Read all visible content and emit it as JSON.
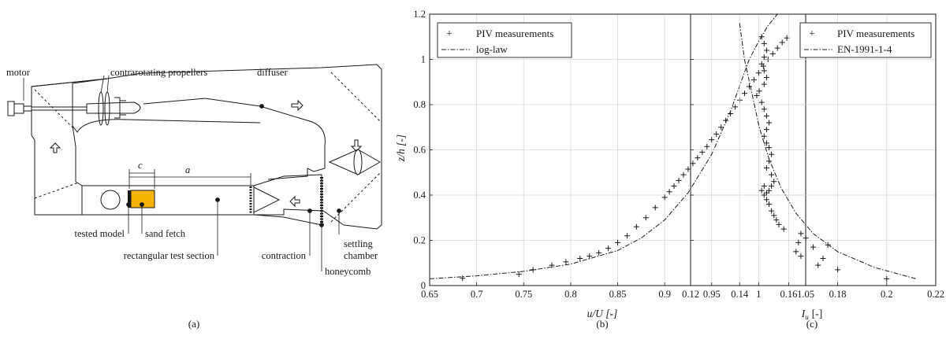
{
  "panel_a": {
    "labels": {
      "motor": "motor",
      "propellers": "contrarotating propellers",
      "diffuser": "diffuser",
      "c": "c",
      "a": "a",
      "tested_model": "tested model",
      "sand_fetch": "sand fetch",
      "test_section": "rectangular test section",
      "contraction": "contraction",
      "settling": "settling",
      "chamber": "chamber",
      "honeycomb": "honeycomb"
    },
    "caption": "(a)",
    "colors": {
      "sand_fetch": "#f4b400",
      "outline": "#1a1a1a"
    }
  },
  "chart_data": [
    {
      "type": "scatter",
      "panel": "b",
      "caption": "(b)",
      "xlabel": "u/U [-]",
      "ylabel": "z/h [-]",
      "xlim": [
        0.65,
        1.05
      ],
      "ylim": [
        0,
        1.2
      ],
      "xticks": [
        "0.65",
        "0.7",
        "0.75",
        "0.8",
        "0.85",
        "0.9",
        "0.95",
        "1",
        "1.05"
      ],
      "yticks": [
        "0",
        "0.2",
        "0.4",
        "0.6",
        "0.8",
        "1",
        "1.2"
      ],
      "grid": true,
      "legend_position": "top-left",
      "series": [
        {
          "name": "PIV measurements",
          "marker": "+",
          "x": [
            0.685,
            0.745,
            0.76,
            0.78,
            0.795,
            0.81,
            0.82,
            0.83,
            0.84,
            0.85,
            0.86,
            0.87,
            0.88,
            0.89,
            0.9,
            0.905,
            0.91,
            0.915,
            0.92,
            0.925,
            0.93,
            0.935,
            0.94,
            0.945,
            0.95,
            0.955,
            0.96,
            0.965,
            0.97,
            0.975,
            0.98,
            0.985,
            0.99,
            0.995,
            1.0,
            1.005,
            1.01,
            1.015,
            1.02,
            1.025,
            1.03
          ],
          "y": [
            0.032,
            0.05,
            0.07,
            0.09,
            0.105,
            0.12,
            0.13,
            0.145,
            0.165,
            0.19,
            0.22,
            0.26,
            0.3,
            0.345,
            0.39,
            0.415,
            0.44,
            0.465,
            0.49,
            0.515,
            0.54,
            0.565,
            0.59,
            0.615,
            0.645,
            0.67,
            0.7,
            0.73,
            0.76,
            0.79,
            0.82,
            0.85,
            0.88,
            0.91,
            0.94,
            0.97,
            1.0,
            1.025,
            1.05,
            1.075,
            1.095
          ]
        },
        {
          "name": "log-law",
          "style": "dash-dot",
          "x": [
            0.65,
            0.7,
            0.75,
            0.8,
            0.85,
            0.875,
            0.9,
            0.925,
            0.95,
            0.97,
            0.99,
            1.0,
            1.01,
            1.02
          ],
          "y": [
            0.03,
            0.043,
            0.063,
            0.095,
            0.155,
            0.21,
            0.29,
            0.41,
            0.58,
            0.77,
            1.0,
            1.08,
            1.15,
            1.2
          ]
        }
      ]
    },
    {
      "type": "scatter",
      "panel": "c",
      "caption": "(c)",
      "xlabel_main": "I",
      "xlabel_sub": "u",
      "xlabel_unit": "[-]",
      "xlim": [
        0.12,
        0.22
      ],
      "ylim": [
        0,
        1.2
      ],
      "xticks": [
        "0.12",
        "0.14",
        "0.16",
        "0.18",
        "0.2",
        "0.22"
      ],
      "grid": true,
      "legend_position": "top-right",
      "series": [
        {
          "name": "PIV measurements",
          "marker": "+",
          "x": [
            0.149,
            0.15,
            0.151,
            0.15,
            0.149,
            0.15,
            0.151,
            0.15,
            0.148,
            0.147,
            0.149,
            0.15,
            0.151,
            0.152,
            0.151,
            0.15,
            0.151,
            0.152,
            0.153,
            0.152,
            0.151,
            0.153,
            0.154,
            0.153,
            0.152,
            0.151,
            0.15,
            0.149,
            0.15,
            0.151,
            0.152,
            0.153,
            0.154,
            0.155,
            0.156,
            0.158,
            0.165,
            0.167,
            0.164,
            0.163,
            0.165,
            0.17,
            0.174,
            0.176,
            0.172,
            0.18,
            0.2
          ],
          "y": [
            1.1,
            1.07,
            1.04,
            1.01,
            0.98,
            0.95,
            0.92,
            0.89,
            0.86,
            0.84,
            0.81,
            0.78,
            0.75,
            0.72,
            0.69,
            0.66,
            0.63,
            0.61,
            0.58,
            0.55,
            0.52,
            0.49,
            0.46,
            0.44,
            0.42,
            0.41,
            0.4,
            0.42,
            0.44,
            0.38,
            0.36,
            0.33,
            0.31,
            0.29,
            0.27,
            0.25,
            0.23,
            0.21,
            0.19,
            0.15,
            0.13,
            0.17,
            0.12,
            0.18,
            0.09,
            0.07,
            0.03
          ]
        },
        {
          "name": "EN-1991-1-4",
          "style": "dash-dot",
          "x": [
            0.14,
            0.142,
            0.145,
            0.148,
            0.152,
            0.157,
            0.163,
            0.17,
            0.18,
            0.195,
            0.212
          ],
          "y": [
            1.16,
            1.0,
            0.85,
            0.7,
            0.56,
            0.43,
            0.32,
            0.23,
            0.15,
            0.08,
            0.03
          ]
        }
      ]
    }
  ]
}
